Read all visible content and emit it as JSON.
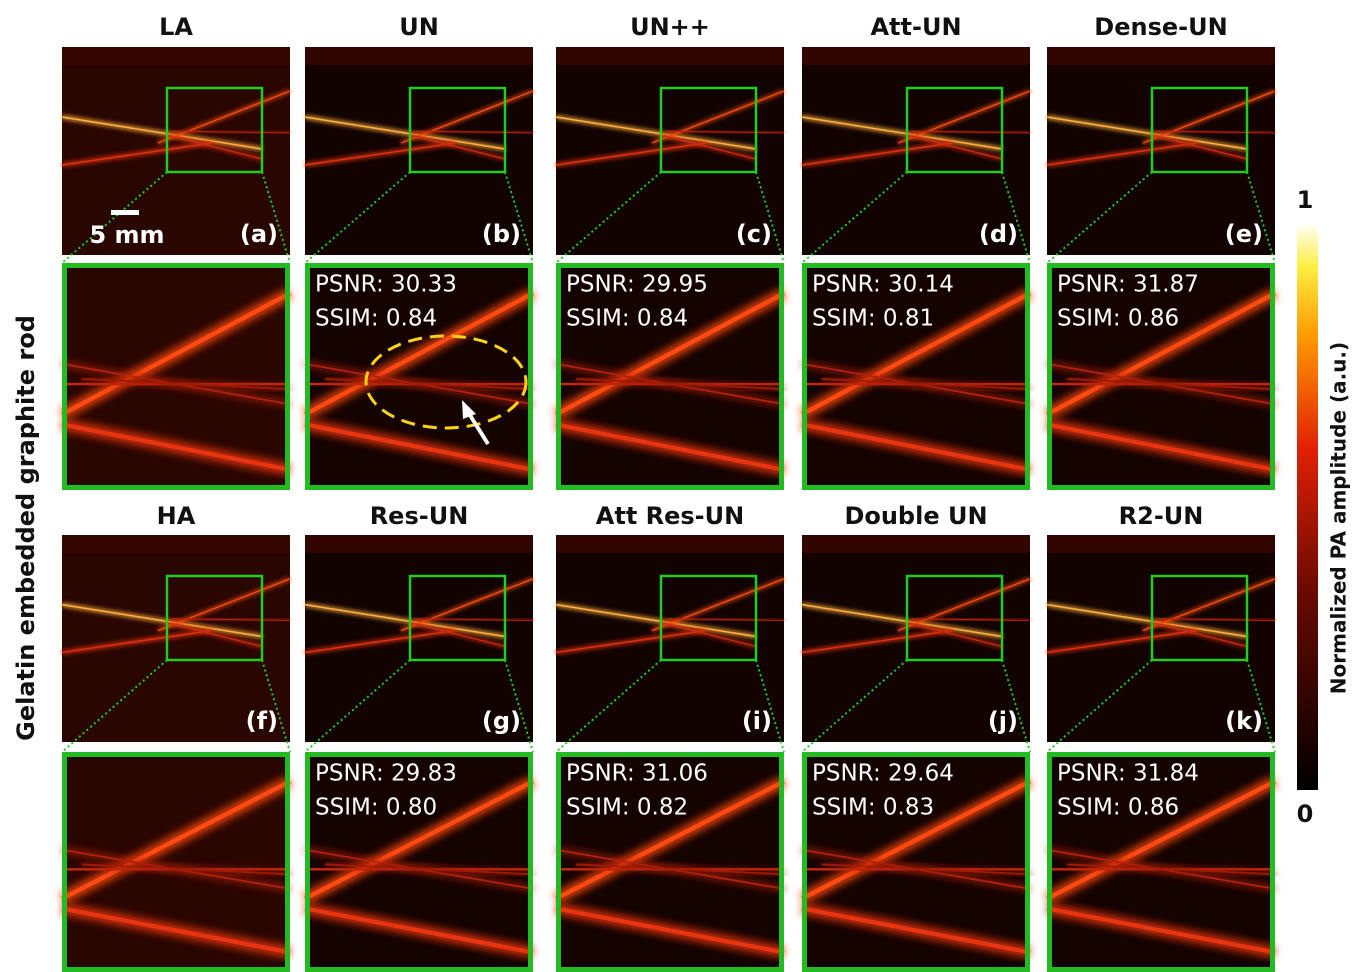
{
  "y_label": "Gelatin embedded graphite rod",
  "scale_bar": "5 mm",
  "colorbar": {
    "label": "Normalized PA amplitude (a.u.)",
    "max": 1,
    "min": 0
  },
  "panels": [
    {
      "title": "LA",
      "letter": "(a)"
    },
    {
      "title": "UN",
      "letter": "(b)",
      "psnr": "PSNR: 30.33",
      "ssim": "SSIM: 0.84"
    },
    {
      "title": "UN++",
      "letter": "(c)",
      "psnr": "PSNR: 29.95",
      "ssim": "SSIM: 0.84"
    },
    {
      "title": "Att-UN",
      "letter": "(d)",
      "psnr": "PSNR: 30.14",
      "ssim": "SSIM: 0.81"
    },
    {
      "title": "Dense-UN",
      "letter": "(e)",
      "psnr": "PSNR: 31.87",
      "ssim": "SSIM: 0.86"
    },
    {
      "title": "HA",
      "letter": "(f)"
    },
    {
      "title": "Res-UN",
      "letter": "(g)",
      "psnr": "PSNR: 29.83",
      "ssim": "SSIM: 0.80"
    },
    {
      "title": "Att Res-UN",
      "letter": "(i)",
      "psnr": "PSNR: 31.06",
      "ssim": "SSIM: 0.82"
    },
    {
      "title": "Double UN",
      "letter": "(j)",
      "psnr": "PSNR: 29.64",
      "ssim": "SSIM: 0.83"
    },
    {
      "title": "R2-UN",
      "letter": "(k)",
      "psnr": "PSNR: 31.84",
      "ssim": "SSIM: 0.86"
    }
  ]
}
